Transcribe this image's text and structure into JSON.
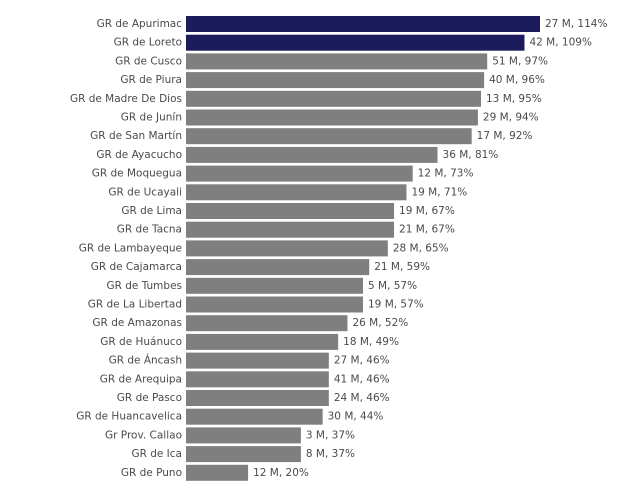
{
  "chart_data": {
    "type": "barh",
    "categories": [
      "GR de Apurimac",
      "GR de Loreto",
      "GR de Cusco",
      "GR de Piura",
      "GR de Madre De Dios",
      "GR de Junín",
      "GR de San Martín",
      "GR de Ayacucho",
      "GR de Moquegua",
      "GR de Ucayali",
      "GR de Lima",
      "GR de Tacna",
      "GR de Lambayeque",
      "GR de Cajamarca",
      "GR de Tumbes",
      "GR de La Libertad",
      "GR de Amazonas",
      "GR de Huánuco",
      "GR de Áncash",
      "GR de Arequipa",
      "GR de Pasco",
      "GR de Huancavelica",
      "Gr Prov. Callao",
      "GR de Ica",
      "GR de Puno"
    ],
    "values": [
      114,
      109,
      97,
      96,
      95,
      94,
      92,
      81,
      73,
      71,
      67,
      67,
      65,
      59,
      57,
      57,
      52,
      49,
      46,
      46,
      46,
      44,
      37,
      37,
      20
    ],
    "value_labels": [
      "27 M, 114%",
      "42 M, 109%",
      "51 M, 97%",
      "40 M, 96%",
      "13 M, 95%",
      "29 M, 94%",
      "17 M, 92%",
      "36 M, 81%",
      "12 M, 73%",
      "19 M, 71%",
      "19 M, 67%",
      "21 M, 67%",
      "28 M, 65%",
      "21 M, 59%",
      "5 M, 57%",
      "19 M, 57%",
      "26 M, 52%",
      "18 M, 49%",
      "27 M, 46%",
      "41 M, 46%",
      "24 M, 46%",
      "30 M, 44%",
      "3 M, 37%",
      "8 M, 37%",
      "12 M, 20%"
    ],
    "colors": [
      "#1c1c5c",
      "#1c1c5c",
      "#7f7f7f",
      "#7f7f7f",
      "#7f7f7f",
      "#7f7f7f",
      "#7f7f7f",
      "#7f7f7f",
      "#7f7f7f",
      "#7f7f7f",
      "#7f7f7f",
      "#7f7f7f",
      "#7f7f7f",
      "#7f7f7f",
      "#7f7f7f",
      "#7f7f7f",
      "#7f7f7f",
      "#7f7f7f",
      "#7f7f7f",
      "#7f7f7f",
      "#7f7f7f",
      "#7f7f7f",
      "#7f7f7f",
      "#7f7f7f",
      "#7f7f7f"
    ]
  }
}
